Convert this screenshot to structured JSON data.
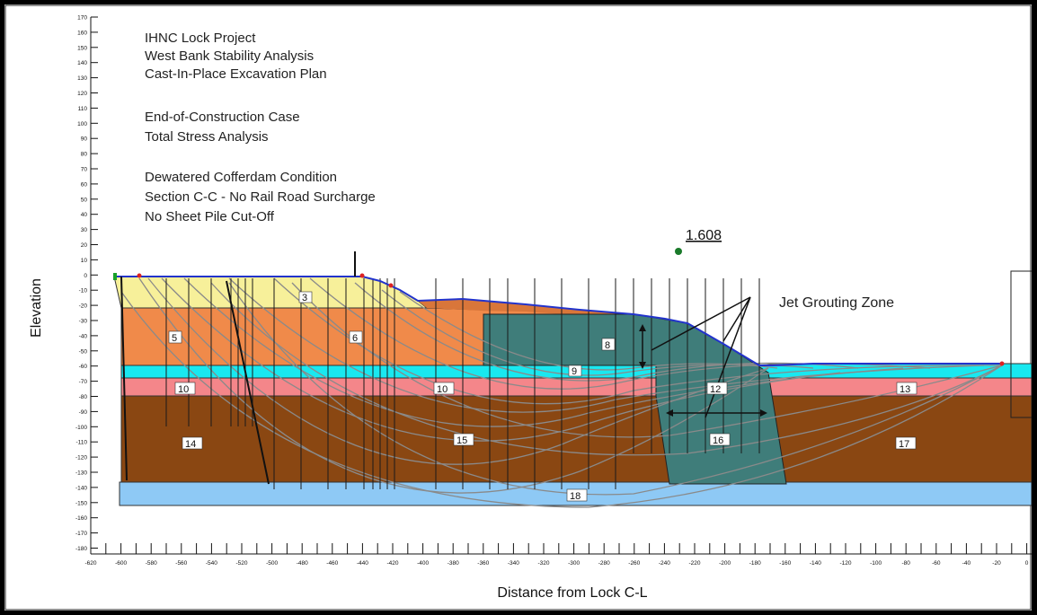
{
  "notes": [
    "IHNC Lock Project",
    "West Bank Stability Analysis",
    "Cast-In-Place Excavation Plan",
    "End-of-Construction Case",
    "Total Stress Analysis",
    "Dewatered Cofferdam Condition",
    "Section C-C - No Rail Road Surcharge",
    "No Sheet Pile Cut-Off"
  ],
  "factor_of_safety": "1.608",
  "annotation": "Jet Grouting Zone",
  "axes": {
    "xlabel": "Distance from Lock C-L",
    "ylabel": "Elevation",
    "y_ticks": [
      "170",
      "160",
      "150",
      "140",
      "130",
      "120",
      "110",
      "100",
      "90",
      "80",
      "70",
      "60",
      "50",
      "40",
      "30",
      "20",
      "10",
      "0",
      "-10",
      "-20",
      "-30",
      "-40",
      "-50",
      "-60",
      "-70",
      "-80",
      "-90",
      "-100",
      "-110",
      "-120",
      "-130",
      "-140",
      "-150",
      "-160",
      "-170",
      "-180"
    ],
    "x_ticks": [
      "-620",
      "-600",
      "-580",
      "-560",
      "-540",
      "-520",
      "-500",
      "-480",
      "-460",
      "-440",
      "-420",
      "-400",
      "-380",
      "-360",
      "-340",
      "-320",
      "-300",
      "-280",
      "-260",
      "-240",
      "-220",
      "-200",
      "-180",
      "-160",
      "-140",
      "-120",
      "-100",
      "-80",
      "-60",
      "-40",
      "-20",
      "0"
    ]
  },
  "materials": [
    {
      "id": "m3",
      "label": "3"
    },
    {
      "id": "m4",
      "label": "3"
    },
    {
      "id": "m5",
      "label": "5"
    },
    {
      "id": "m6",
      "label": "6"
    },
    {
      "id": "m8",
      "label": "8"
    },
    {
      "id": "m9",
      "label": "9"
    },
    {
      "id": "m10",
      "label": "10"
    },
    {
      "id": "m10b",
      "label": "10"
    },
    {
      "id": "m12",
      "label": "12"
    },
    {
      "id": "m13",
      "label": "13"
    },
    {
      "id": "m14",
      "label": "14"
    },
    {
      "id": "m15",
      "label": "15"
    },
    {
      "id": "m16",
      "label": "16"
    },
    {
      "id": "m17",
      "label": "17"
    },
    {
      "id": "m18",
      "label": "18"
    }
  ],
  "colors": {
    "yellow": "#f7f09a",
    "orange": "#f08a4a",
    "cyan": "#19e8f0",
    "salmon": "#f4868a",
    "brown": "#8a4712",
    "lightblue": "#8ec9f5",
    "teal": "#3f7d7a",
    "slip_surface": "#8a8a8a"
  }
}
